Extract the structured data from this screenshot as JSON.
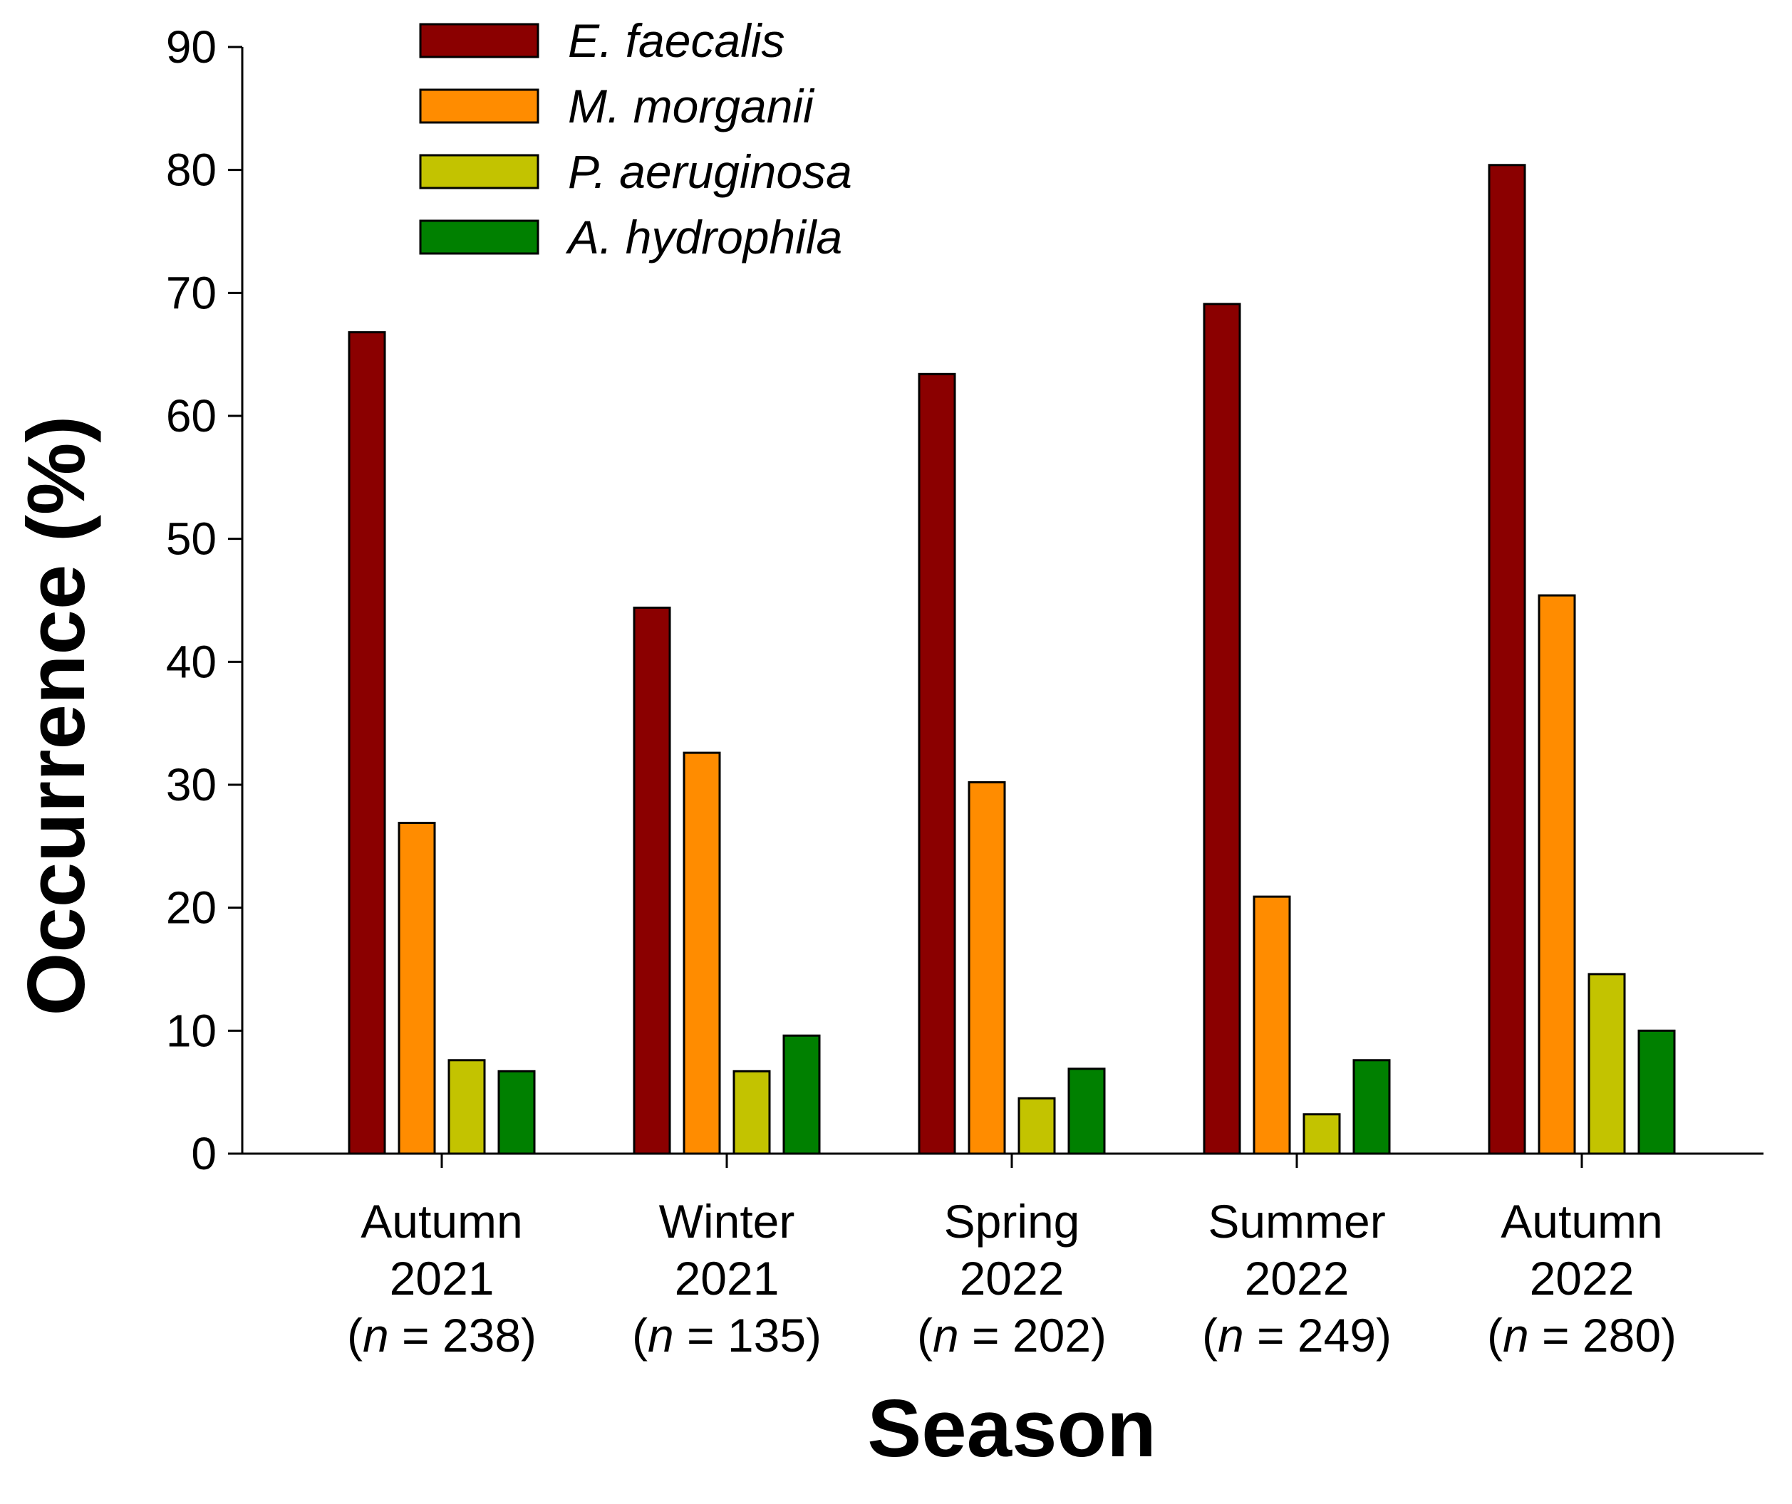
{
  "chart_data": {
    "type": "bar",
    "title": "",
    "xlabel": "Season",
    "ylabel": "Occurrence (%)",
    "ylim": [
      0,
      90
    ],
    "yticks": [
      0,
      10,
      20,
      30,
      40,
      50,
      60,
      70,
      80,
      90
    ],
    "grid": false,
    "legend_position": "top-left",
    "categories": [
      {
        "season": "Autumn",
        "year": "2021",
        "n_prefix": "(",
        "n_italic": "n",
        "n_suffix": " = 238)"
      },
      {
        "season": "Winter",
        "year": "2021",
        "n_prefix": "(",
        "n_italic": "n",
        "n_suffix": " = 135)"
      },
      {
        "season": "Spring",
        "year": "2022",
        "n_prefix": "(",
        "n_italic": "n",
        "n_suffix": " = 202)"
      },
      {
        "season": "Summer",
        "year": "2022",
        "n_prefix": "(",
        "n_italic": "n",
        "n_suffix": " = 249)"
      },
      {
        "season": "Autumn",
        "year": "2022",
        "n_prefix": "(",
        "n_italic": "n",
        "n_suffix": " = 280)"
      }
    ],
    "series": [
      {
        "name": "E. faecalis",
        "color": "#8B0000",
        "values": [
          66.8,
          44.4,
          63.4,
          69.1,
          80.4
        ]
      },
      {
        "name": "M. morganii",
        "color": "#FF8C00",
        "values": [
          26.9,
          32.6,
          30.2,
          20.9,
          45.4
        ]
      },
      {
        "name": "P. aeruginosa",
        "color": "#C3C300",
        "values": [
          7.6,
          6.7,
          4.5,
          3.2,
          14.6
        ]
      },
      {
        "name": "A. hydrophila",
        "color": "#008000",
        "values": [
          6.7,
          9.6,
          6.9,
          7.6,
          10.0
        ]
      }
    ]
  }
}
